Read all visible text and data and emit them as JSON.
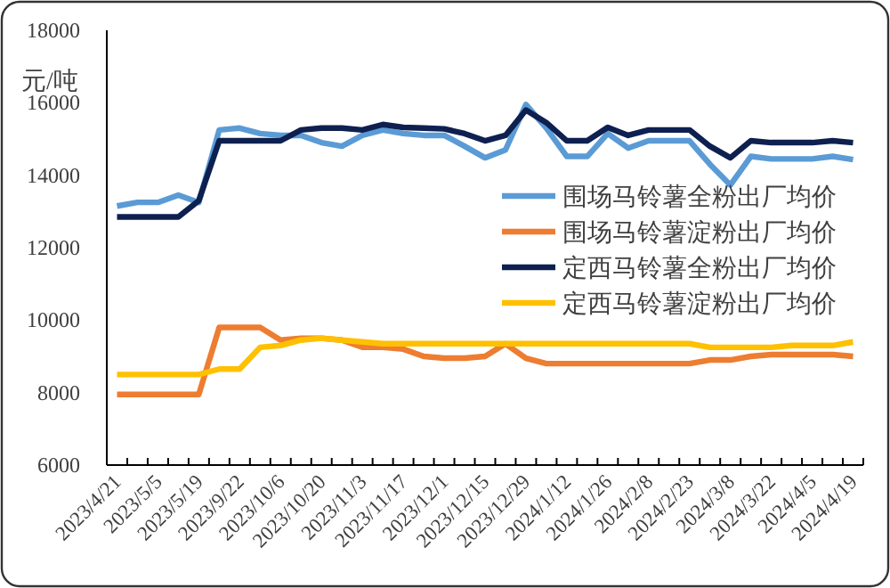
{
  "chart_data": {
    "type": "line",
    "ylabel": "元/吨",
    "categories": [
      "2023/4/21",
      null,
      "2023/5/5",
      null,
      "2023/5/19",
      null,
      "2023/9/22",
      null,
      "2023/10/6",
      null,
      "2023/10/20",
      null,
      "2023/11/3",
      null,
      "2023/11/17",
      null,
      "2023/12/1",
      null,
      "2023/12/15",
      null,
      "2023/12/29",
      null,
      "2024/1/12",
      null,
      "2024/1/26",
      null,
      "2024/2/8",
      null,
      "2024/2/23",
      null,
      "2024/3/8",
      null,
      "2024/3/22",
      null,
      "2024/4/5",
      null,
      "2024/4/19"
    ],
    "ylim": [
      6000,
      18000
    ],
    "yticks": [
      6000,
      8000,
      10000,
      12000,
      14000,
      16000,
      18000
    ],
    "legend": "right",
    "series": [
      {
        "name": "围场马铃薯全粉出厂均价",
        "color": "#5b9bd5",
        "values": [
          13150,
          13250,
          13250,
          13450,
          13250,
          15250,
          15300,
          15150,
          15100,
          15100,
          14900,
          14800,
          15100,
          15250,
          15150,
          15100,
          15100,
          14800,
          14480,
          14700,
          15950,
          15300,
          14520,
          14520,
          15150,
          14750,
          14950,
          14950,
          14950,
          14300,
          13730,
          14520,
          14450,
          14450,
          14450,
          14520,
          14430
        ]
      },
      {
        "name": "围场马铃薯淀粉出厂均价",
        "color": "#ed7d31",
        "values": [
          7950,
          7950,
          7950,
          7950,
          7950,
          9800,
          9800,
          9800,
          9450,
          9500,
          9500,
          9450,
          9250,
          9250,
          9200,
          9000,
          8950,
          8950,
          9000,
          9350,
          8950,
          8800,
          8800,
          8800,
          8800,
          8800,
          8800,
          8800,
          8800,
          8900,
          8900,
          9000,
          9050,
          9050,
          9050,
          9050,
          9000
        ]
      },
      {
        "name": "定西马铃薯全粉出厂均价",
        "color": "#0e2050",
        "values": [
          12850,
          12850,
          12850,
          12850,
          13300,
          14950,
          14950,
          14950,
          14950,
          15250,
          15300,
          15300,
          15250,
          15400,
          15320,
          15300,
          15280,
          15150,
          14950,
          15100,
          15800,
          15450,
          14950,
          14950,
          15320,
          15100,
          15250,
          15250,
          15250,
          14800,
          14480,
          14950,
          14900,
          14900,
          14900,
          14950,
          14900
        ]
      },
      {
        "name": "定西马铃薯淀粉出厂均价",
        "color": "#ffc000",
        "values": [
          8500,
          8500,
          8500,
          8500,
          8500,
          8650,
          8650,
          9250,
          9300,
          9450,
          9500,
          9450,
          9400,
          9350,
          9350,
          9350,
          9350,
          9350,
          9350,
          9350,
          9350,
          9350,
          9350,
          9350,
          9350,
          9350,
          9350,
          9350,
          9350,
          9250,
          9250,
          9250,
          9250,
          9300,
          9300,
          9300,
          9400
        ]
      }
    ]
  }
}
